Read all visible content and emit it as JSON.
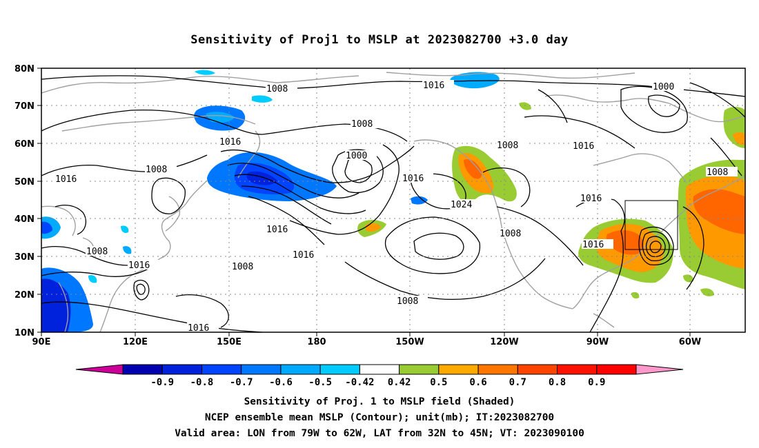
{
  "title": "Sensitivity of Proj1 to MSLP at 2023082700 +3.0 day",
  "map": {
    "lat_labels": [
      "80N",
      "70N",
      "60N",
      "50N",
      "40N",
      "30N",
      "20N",
      "10N"
    ],
    "lon_labels": [
      "90E",
      "120E",
      "150E",
      "180",
      "150W",
      "120W",
      "90W",
      "60W"
    ],
    "contour_labels": [
      "1008",
      "1016",
      "1000",
      "1008",
      "1016",
      "1008",
      "1016",
      "1000",
      "1008",
      "1008",
      "1016",
      "1016",
      "1016",
      "1024",
      "1016",
      "1008",
      "1016",
      "1008",
      "1016",
      "1008",
      "1016",
      "1008",
      "1016",
      "1008"
    ],
    "colors": {
      "strong_negative": "#0000cc",
      "negative": "#0055ff",
      "weak_negative": "#00c8ff",
      "weak_positive": "#99cc33",
      "positive": "#ff9900",
      "strong_positive": "#ff6600",
      "land_outline": "#a0a0a0",
      "contour": "#000000"
    }
  },
  "colorbar": {
    "labels": [
      "-0.9",
      "-0.8",
      "-0.7",
      "-0.6",
      "-0.5",
      "-0.42",
      "0.42",
      "0.5",
      "0.6",
      "0.7",
      "0.8",
      "0.9"
    ],
    "colors": [
      "#cc0099",
      "#0000b0",
      "#0022dd",
      "#0044ff",
      "#0077ff",
      "#00aaff",
      "#00ccff",
      "#ffffff",
      "#99cc33",
      "#ffaa00",
      "#ff7700",
      "#ff4400",
      "#ff1100",
      "#ff0000",
      "#ff99cc"
    ]
  },
  "footer": {
    "line1": "Sensitivity of Proj. 1 to MSLP field (Shaded)",
    "line2": "NCEP ensemble mean MSLP (Contour); unit(mb); IT:2023082700",
    "line3": "Valid area: LON from 79W to 62W, LAT from 32N to 45N; VT: 2023090100"
  }
}
